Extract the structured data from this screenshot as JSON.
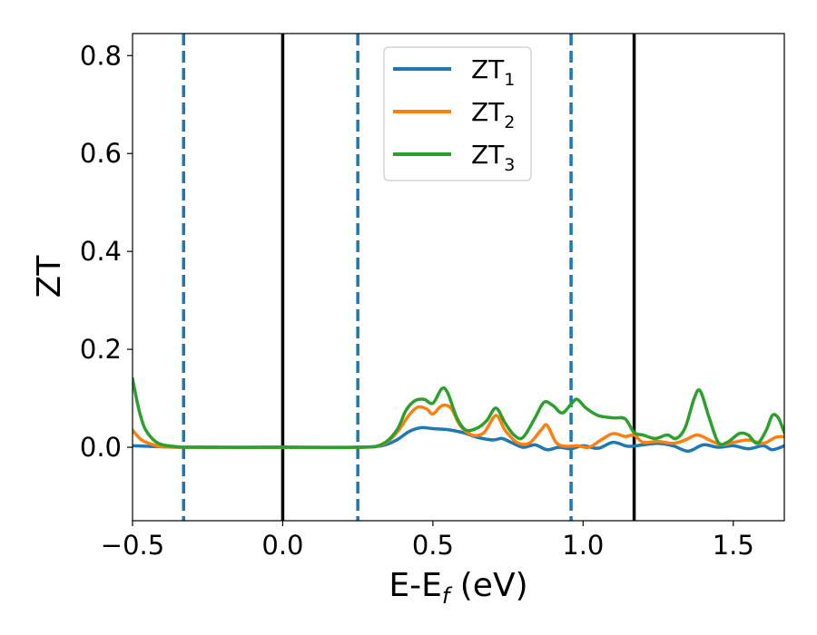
{
  "chart_data": {
    "type": "line",
    "title": "",
    "xlabel": "E-E",
    "xlabel_sub": "f",
    "xlabel_unit": " (eV)",
    "ylabel": "ZT",
    "xlim": [
      -0.5,
      1.67
    ],
    "ylim": [
      -0.15,
      0.845
    ],
    "x_ticks": [
      -0.5,
      0.0,
      0.5,
      1.0,
      1.5
    ],
    "x_tick_labels": [
      "−0.5",
      "0.0",
      "0.5",
      "1.0",
      "1.5"
    ],
    "y_ticks": [
      0.0,
      0.2,
      0.4,
      0.6,
      0.8
    ],
    "y_tick_labels": [
      "0.0",
      "0.2",
      "0.4",
      "0.6",
      "0.8"
    ],
    "grid": false,
    "legend_position": "top-center",
    "vlines": [
      {
        "x": -0.33,
        "style": "dashed",
        "color": "#1f77b4"
      },
      {
        "x": 0.0,
        "style": "solid",
        "color": "#000000"
      },
      {
        "x": 0.25,
        "style": "dashed",
        "color": "#1f77b4"
      },
      {
        "x": 0.96,
        "style": "dashed",
        "color": "#1f77b4"
      },
      {
        "x": 1.17,
        "style": "solid",
        "color": "#000000"
      }
    ],
    "series": [
      {
        "name": "ZT",
        "name_sub": "1",
        "color": "#1f77b4",
        "points": [
          [
            -0.5,
            0.003
          ],
          [
            -0.4,
            0.001
          ],
          [
            -0.3,
            0.0
          ],
          [
            0.0,
            0.0
          ],
          [
            0.25,
            0.0
          ],
          [
            0.33,
            0.003
          ],
          [
            0.38,
            0.015
          ],
          [
            0.42,
            0.032
          ],
          [
            0.46,
            0.04
          ],
          [
            0.5,
            0.038
          ],
          [
            0.55,
            0.036
          ],
          [
            0.6,
            0.03
          ],
          [
            0.65,
            0.02
          ],
          [
            0.7,
            0.015
          ],
          [
            0.73,
            0.018
          ],
          [
            0.76,
            0.01
          ],
          [
            0.8,
            0.0
          ],
          [
            0.84,
            0.005
          ],
          [
            0.88,
            -0.005
          ],
          [
            0.92,
            0.0
          ],
          [
            0.96,
            -0.003
          ],
          [
            1.0,
            0.003
          ],
          [
            1.05,
            -0.002
          ],
          [
            1.1,
            0.01
          ],
          [
            1.15,
            0.002
          ],
          [
            1.2,
            0.005
          ],
          [
            1.25,
            0.008
          ],
          [
            1.3,
            0.003
          ],
          [
            1.35,
            -0.008
          ],
          [
            1.4,
            0.005
          ],
          [
            1.45,
            0.0
          ],
          [
            1.5,
            0.003
          ],
          [
            1.55,
            -0.003
          ],
          [
            1.6,
            0.003
          ],
          [
            1.63,
            -0.005
          ],
          [
            1.67,
            0.003
          ]
        ]
      },
      {
        "name": "ZT",
        "name_sub": "2",
        "color": "#ff7f0e",
        "points": [
          [
            -0.5,
            0.035
          ],
          [
            -0.47,
            0.015
          ],
          [
            -0.43,
            0.005
          ],
          [
            -0.4,
            0.001
          ],
          [
            -0.3,
            0.0
          ],
          [
            0.0,
            0.0
          ],
          [
            0.25,
            0.0
          ],
          [
            0.33,
            0.005
          ],
          [
            0.38,
            0.03
          ],
          [
            0.42,
            0.065
          ],
          [
            0.45,
            0.082
          ],
          [
            0.48,
            0.078
          ],
          [
            0.5,
            0.068
          ],
          [
            0.53,
            0.085
          ],
          [
            0.56,
            0.08
          ],
          [
            0.59,
            0.045
          ],
          [
            0.63,
            0.025
          ],
          [
            0.67,
            0.03
          ],
          [
            0.71,
            0.065
          ],
          [
            0.74,
            0.035
          ],
          [
            0.78,
            0.01
          ],
          [
            0.82,
            0.008
          ],
          [
            0.86,
            0.035
          ],
          [
            0.88,
            0.045
          ],
          [
            0.91,
            0.01
          ],
          [
            0.94,
            0.002
          ],
          [
            0.98,
            0.003
          ],
          [
            1.02,
            0.0
          ],
          [
            1.06,
            0.015
          ],
          [
            1.1,
            0.028
          ],
          [
            1.14,
            0.022
          ],
          [
            1.17,
            0.025
          ],
          [
            1.2,
            0.01
          ],
          [
            1.25,
            0.012
          ],
          [
            1.3,
            0.008
          ],
          [
            1.34,
            0.015
          ],
          [
            1.38,
            0.025
          ],
          [
            1.42,
            0.015
          ],
          [
            1.46,
            0.005
          ],
          [
            1.5,
            0.01
          ],
          [
            1.55,
            0.015
          ],
          [
            1.6,
            0.008
          ],
          [
            1.64,
            0.02
          ],
          [
            1.67,
            0.022
          ]
        ]
      },
      {
        "name": "ZT",
        "name_sub": "3",
        "color": "#2ca02c",
        "points": [
          [
            -0.5,
            0.14
          ],
          [
            -0.48,
            0.08
          ],
          [
            -0.46,
            0.04
          ],
          [
            -0.43,
            0.015
          ],
          [
            -0.4,
            0.005
          ],
          [
            -0.35,
            0.001
          ],
          [
            -0.3,
            0.0
          ],
          [
            0.0,
            0.0
          ],
          [
            0.25,
            0.0
          ],
          [
            0.33,
            0.006
          ],
          [
            0.38,
            0.035
          ],
          [
            0.41,
            0.075
          ],
          [
            0.44,
            0.095
          ],
          [
            0.47,
            0.098
          ],
          [
            0.5,
            0.09
          ],
          [
            0.53,
            0.12
          ],
          [
            0.55,
            0.11
          ],
          [
            0.58,
            0.06
          ],
          [
            0.61,
            0.035
          ],
          [
            0.65,
            0.04
          ],
          [
            0.68,
            0.055
          ],
          [
            0.71,
            0.08
          ],
          [
            0.74,
            0.05
          ],
          [
            0.77,
            0.025
          ],
          [
            0.8,
            0.02
          ],
          [
            0.84,
            0.06
          ],
          [
            0.87,
            0.092
          ],
          [
            0.9,
            0.085
          ],
          [
            0.93,
            0.07
          ],
          [
            0.96,
            0.088
          ],
          [
            0.98,
            0.098
          ],
          [
            1.01,
            0.08
          ],
          [
            1.05,
            0.065
          ],
          [
            1.1,
            0.06
          ],
          [
            1.14,
            0.058
          ],
          [
            1.17,
            0.03
          ],
          [
            1.2,
            0.025
          ],
          [
            1.24,
            0.018
          ],
          [
            1.28,
            0.025
          ],
          [
            1.31,
            0.018
          ],
          [
            1.34,
            0.04
          ],
          [
            1.37,
            0.1
          ],
          [
            1.39,
            0.115
          ],
          [
            1.42,
            0.06
          ],
          [
            1.45,
            0.01
          ],
          [
            1.48,
            0.01
          ],
          [
            1.52,
            0.028
          ],
          [
            1.55,
            0.025
          ],
          [
            1.58,
            0.008
          ],
          [
            1.61,
            0.035
          ],
          [
            1.63,
            0.065
          ],
          [
            1.65,
            0.06
          ],
          [
            1.67,
            0.03
          ]
        ]
      }
    ]
  }
}
